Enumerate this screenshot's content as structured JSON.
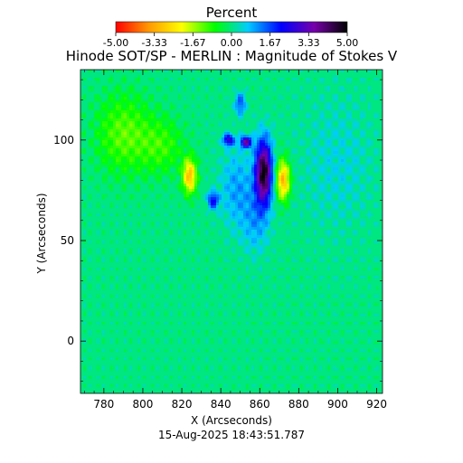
{
  "chart_data": {
    "type": "heatmap",
    "title": "Hinode SOT/SP - MERLIN : Magnitude of Stokes V",
    "xlabel": "X (Arcseconds)",
    "ylabel": "Y (Arcseconds)",
    "footer": "15-Aug-2025 18:43:51.787",
    "xlim": [
      768,
      923
    ],
    "ylim": [
      -26,
      135
    ],
    "x_ticks": [
      780,
      800,
      820,
      840,
      860,
      880,
      900,
      920
    ],
    "y_ticks": [
      0,
      50,
      100
    ],
    "colorbar": {
      "label": "Percent",
      "range": [
        -5.0,
        5.0
      ],
      "ticks": [
        "-5.00",
        "-3.33",
        "-1.67",
        "0.00",
        "1.67",
        "3.33",
        "5.00"
      ],
      "colors": [
        "#ff0000",
        "#ff9900",
        "#ffff00",
        "#00ff00",
        "#00ccff",
        "#0000ff",
        "#7700aa",
        "#000000"
      ]
    },
    "background_value": 0.0,
    "features": [
      {
        "x": 790,
        "y": 103,
        "sx": 10,
        "sy": 14,
        "value": -1.2
      },
      {
        "x": 810,
        "y": 97,
        "sx": 8,
        "sy": 10,
        "value": -0.9
      },
      {
        "x": 824,
        "y": 82,
        "sx": 2.5,
        "sy": 6,
        "value": -3.0
      },
      {
        "x": 872,
        "y": 80,
        "sx": 2.5,
        "sy": 7,
        "value": -3.2
      },
      {
        "x": 862,
        "y": 84,
        "sx": 3,
        "sy": 11,
        "value": 4.8
      },
      {
        "x": 853,
        "y": 99,
        "sx": 2,
        "sy": 2,
        "value": 3.5
      },
      {
        "x": 844,
        "y": 100,
        "sx": 2,
        "sy": 2,
        "value": 2.8
      },
      {
        "x": 850,
        "y": 118,
        "sx": 2,
        "sy": 4,
        "value": 1.6
      },
      {
        "x": 836,
        "y": 70,
        "sx": 2,
        "sy": 3,
        "value": 2.2
      },
      {
        "x": 848,
        "y": 76,
        "sx": 6,
        "sy": 14,
        "value": 1.0
      },
      {
        "x": 858,
        "y": 60,
        "sx": 5,
        "sy": 12,
        "value": 0.9
      },
      {
        "x": 900,
        "y": 88,
        "sx": 14,
        "sy": 25,
        "value": 0.5
      }
    ]
  }
}
